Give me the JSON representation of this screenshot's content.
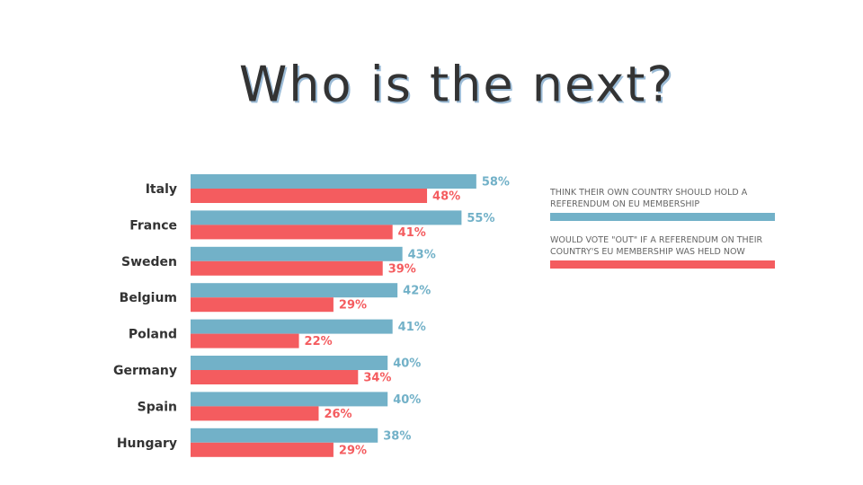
{
  "chart_data": {
    "type": "bar",
    "orientation": "horizontal",
    "title": "Who is the next?",
    "categories": [
      "Italy",
      "France",
      "Sweden",
      "Belgium",
      "Poland",
      "Germany",
      "Spain",
      "Hungary"
    ],
    "series": [
      {
        "name": "THINK THEIR OWN COUNTRY SHOULD HOLD A REFERENDUM ON EU MEMBERSHIP",
        "color": "#72b1c8",
        "values": [
          58,
          55,
          43,
          42,
          41,
          40,
          40,
          38
        ],
        "value_labels": [
          "58%",
          "55%",
          "43%",
          "42%",
          "41%",
          "40%",
          "40%",
          "38%"
        ]
      },
      {
        "name": "WOULD VOTE \"OUT\" IF A REFERENDUM ON THEIR COUNTRY'S EU MEMBERSHIP WAS HELD NOW",
        "color": "#f45c5f",
        "values": [
          48,
          41,
          39,
          29,
          22,
          34,
          26,
          29
        ],
        "value_labels": [
          "48%",
          "41%",
          "39%",
          "29%",
          "22%",
          "34%",
          "26%",
          "29%"
        ]
      }
    ],
    "legend": "right"
  }
}
